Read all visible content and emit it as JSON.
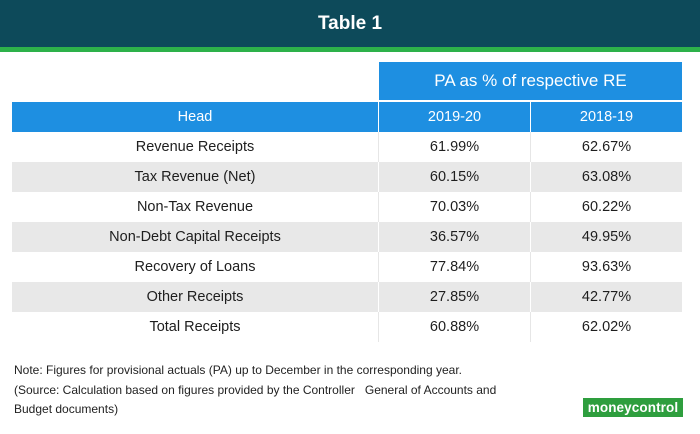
{
  "title": "Table 1",
  "table": {
    "group_header": "PA as % of respective RE",
    "columns": [
      "Head",
      "2019-20",
      "2018-19"
    ],
    "rows": [
      {
        "head": "Revenue Receipts",
        "y2019_20": "61.99%",
        "y2018_19": "62.67%"
      },
      {
        "head": "Tax Revenue (Net)",
        "y2019_20": "60.15%",
        "y2018_19": "63.08%"
      },
      {
        "head": "Non-Tax Revenue",
        "y2019_20": "70.03%",
        "y2018_19": "60.22%"
      },
      {
        "head": "Non-Debt Capital Receipts",
        "y2019_20": "36.57%",
        "y2018_19": "49.95%"
      },
      {
        "head": "Recovery of Loans",
        "y2019_20": "77.84%",
        "y2018_19": "93.63%"
      },
      {
        "head": "Other Receipts",
        "y2019_20": "27.85%",
        "y2018_19": "42.77%"
      },
      {
        "head": "Total Receipts",
        "y2019_20": "60.88%",
        "y2018_19": "62.02%"
      }
    ]
  },
  "notes": {
    "line1": "Note: Figures for provisional actuals (PA) up to December in the corresponding year.",
    "line2": "(Source: Calculation based on figures provided by the Controller   General of Accounts and",
    "line3": "Budget documents)"
  },
  "logo": {
    "text": "moneycontrol"
  },
  "colors": {
    "title_bg": "#0d4a5a",
    "accent_green": "#2db14a",
    "header_blue": "#1e8fe1",
    "row_shade": "#e8e8e8"
  }
}
